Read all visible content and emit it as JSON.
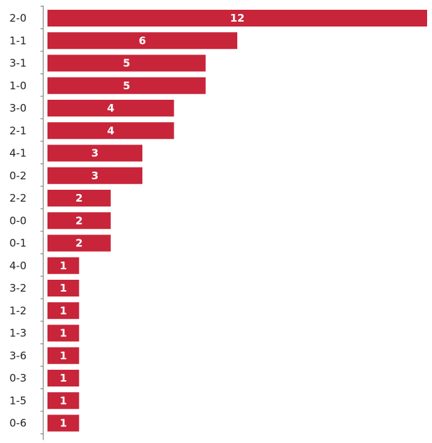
{
  "chart_data": {
    "type": "bar",
    "orientation": "horizontal",
    "categories": [
      "2-0",
      "1-1",
      "3-1",
      "1-0",
      "3-0",
      "2-1",
      "4-1",
      "0-2",
      "2-2",
      "0-0",
      "0-1",
      "4-0",
      "3-2",
      "1-2",
      "1-3",
      "3-6",
      "0-3",
      "1-5",
      "0-6"
    ],
    "values": [
      12,
      6,
      5,
      5,
      4,
      4,
      3,
      3,
      2,
      2,
      2,
      1,
      1,
      1,
      1,
      1,
      1,
      1,
      1
    ],
    "data_labels": [
      "12",
      "6",
      "5",
      "5",
      "4",
      "4",
      "3",
      "3",
      "2",
      "2",
      "2",
      "1",
      "1",
      "1",
      "1",
      "1",
      "1",
      "1",
      "1"
    ],
    "xlim": [
      0,
      12
    ],
    "title": "",
    "xlabel": "",
    "ylabel": "",
    "grid": false,
    "bar_color": "#c8253a"
  }
}
